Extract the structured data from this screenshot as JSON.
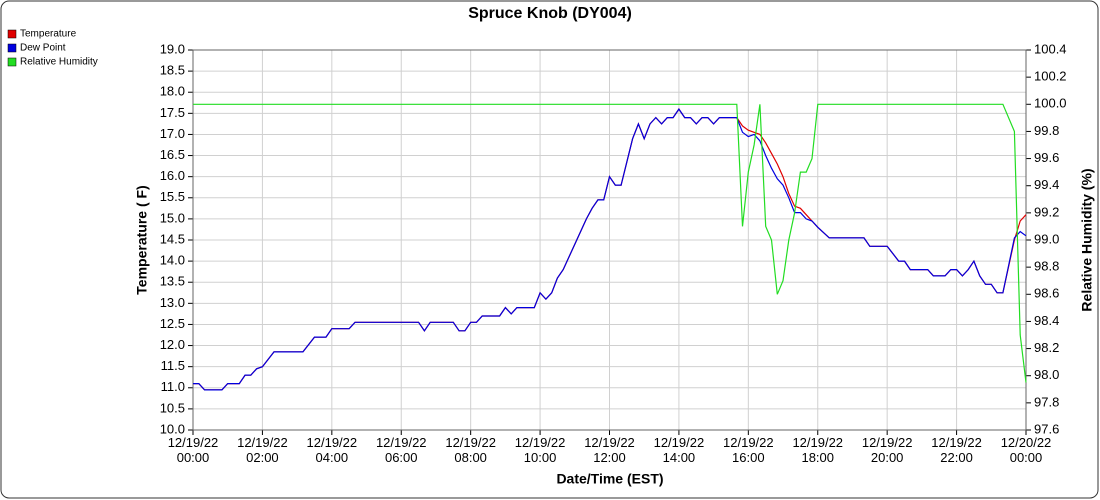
{
  "chart_data": {
    "type": "line",
    "title": "Spruce Knob (DY004)",
    "x_label": "Date/Time (EST)",
    "y_label": "Temperature ( F)",
    "y2_label": "Relative Humidity (%)",
    "legend": "top-left",
    "grid": true,
    "x": [
      "12/19/22 00:00",
      "12/19/22 00:10",
      "12/19/22 00:20",
      "12/19/22 00:50",
      "12/19/22 01:00",
      "12/19/22 01:20",
      "12/19/22 01:30",
      "12/19/22 01:40",
      "12/19/22 01:50",
      "12/19/22 02:00",
      "12/19/22 02:20",
      "12/19/22 03:10",
      "12/19/22 03:30",
      "12/19/22 03:50",
      "12/19/22 04:00",
      "12/19/22 04:30",
      "12/19/22 04:40",
      "12/19/22 06:30",
      "12/19/22 06:40",
      "12/19/22 06:50",
      "12/19/22 07:30",
      "12/19/22 07:40",
      "12/19/22 07:50",
      "12/19/22 08:00",
      "12/19/22 08:10",
      "12/19/22 08:20",
      "12/19/22 08:50",
      "12/19/22 09:00",
      "12/19/22 09:10",
      "12/19/22 09:20",
      "12/19/22 09:50",
      "12/19/22 10:00",
      "12/19/22 10:10",
      "12/19/22 10:20",
      "12/19/22 10:30",
      "12/19/22 10:40",
      "12/19/22 11:00",
      "12/19/22 11:20",
      "12/19/22 11:30",
      "12/19/22 11:40",
      "12/19/22 11:50",
      "12/19/22 12:00",
      "12/19/22 12:10",
      "12/19/22 12:20",
      "12/19/22 12:40",
      "12/19/22 12:50",
      "12/19/22 13:00",
      "12/19/22 13:10",
      "12/19/22 13:20",
      "12/19/22 13:30",
      "12/19/22 13:40",
      "12/19/22 13:50",
      "12/19/22 14:00",
      "12/19/22 14:10",
      "12/19/22 14:20",
      "12/19/22 14:30",
      "12/19/22 14:40",
      "12/19/22 14:50",
      "12/19/22 15:00",
      "12/19/22 15:10",
      "12/19/22 15:40",
      "12/19/22 15:50",
      "12/19/22 16:00",
      "12/19/22 16:10",
      "12/19/22 16:20",
      "12/19/22 16:30",
      "12/19/22 16:40",
      "12/19/22 16:50",
      "12/19/22 17:00",
      "12/19/22 17:10",
      "12/19/22 17:20",
      "12/19/22 17:30",
      "12/19/22 17:40",
      "12/19/22 17:50",
      "12/19/22 18:00",
      "12/19/22 18:20",
      "12/19/22 19:20",
      "12/19/22 19:30",
      "12/19/22 20:00",
      "12/19/22 20:20",
      "12/19/22 20:30",
      "12/19/22 20:40",
      "12/19/22 21:10",
      "12/19/22 21:20",
      "12/19/22 21:40",
      "12/19/22 21:50",
      "12/19/22 22:00",
      "12/19/22 22:10",
      "12/19/22 22:20",
      "12/19/22 22:30",
      "12/19/22 22:40",
      "12/19/22 22:50",
      "12/19/22 23:00",
      "12/19/22 23:10",
      "12/19/22 23:20",
      "12/19/22 23:40",
      "12/19/22 23:50",
      "12/20/22 00:00"
    ],
    "series": [
      {
        "name": "Temperature",
        "color": "#e00000",
        "values": [
          11.1,
          11.1,
          10.95,
          10.95,
          11.1,
          11.1,
          11.3,
          11.3,
          11.45,
          11.5,
          11.85,
          11.85,
          12.2,
          12.2,
          12.4,
          12.4,
          12.55,
          12.55,
          12.35,
          12.55,
          12.55,
          12.35,
          12.35,
          12.55,
          12.55,
          12.7,
          12.7,
          12.9,
          12.75,
          12.9,
          12.9,
          13.25,
          13.1,
          13.25,
          13.6,
          13.8,
          14.4,
          15.0,
          15.25,
          15.45,
          15.45,
          16.0,
          15.8,
          15.8,
          16.9,
          17.25,
          16.9,
          17.25,
          17.4,
          17.25,
          17.4,
          17.4,
          17.6,
          17.4,
          17.4,
          17.25,
          17.4,
          17.4,
          17.25,
          17.4,
          17.4,
          17.2,
          17.1,
          17.05,
          17.0,
          16.8,
          16.55,
          16.3,
          16.0,
          15.6,
          15.3,
          15.25,
          15.1,
          14.95,
          14.8,
          14.55,
          14.55,
          14.35,
          14.35,
          14.0,
          14.0,
          13.8,
          13.8,
          13.65,
          13.65,
          13.8,
          13.8,
          13.65,
          13.8,
          14.0,
          13.65,
          13.45,
          13.45,
          13.25,
          13.25,
          14.5,
          14.95,
          15.1
        ]
      },
      {
        "name": "Dew Point",
        "color": "#0000e0",
        "values": [
          11.1,
          11.1,
          10.95,
          10.95,
          11.1,
          11.1,
          11.3,
          11.3,
          11.45,
          11.5,
          11.85,
          11.85,
          12.2,
          12.2,
          12.4,
          12.4,
          12.55,
          12.55,
          12.35,
          12.55,
          12.55,
          12.35,
          12.35,
          12.55,
          12.55,
          12.7,
          12.7,
          12.9,
          12.75,
          12.9,
          12.9,
          13.25,
          13.1,
          13.25,
          13.6,
          13.8,
          14.4,
          15.0,
          15.25,
          15.45,
          15.45,
          16.0,
          15.8,
          15.8,
          16.9,
          17.25,
          16.9,
          17.25,
          17.4,
          17.25,
          17.4,
          17.4,
          17.6,
          17.4,
          17.4,
          17.25,
          17.4,
          17.4,
          17.25,
          17.4,
          17.4,
          17.05,
          16.95,
          17.0,
          16.85,
          16.5,
          16.2,
          15.95,
          15.8,
          15.5,
          15.15,
          15.15,
          15.0,
          14.95,
          14.8,
          14.55,
          14.55,
          14.35,
          14.35,
          14.0,
          14.0,
          13.8,
          13.8,
          13.65,
          13.65,
          13.8,
          13.8,
          13.65,
          13.8,
          14.0,
          13.65,
          13.45,
          13.45,
          13.25,
          13.25,
          14.55,
          14.7,
          14.6
        ]
      },
      {
        "name": "Relative Humidity",
        "color": "#22dd22",
        "axis": "y2",
        "values": [
          100,
          100,
          100,
          100,
          100,
          100,
          100,
          100,
          100,
          100,
          100,
          100,
          100,
          100,
          100,
          100,
          100,
          100,
          100,
          100,
          100,
          100,
          100,
          100,
          100,
          100,
          100,
          100,
          100,
          100,
          100,
          100,
          100,
          100,
          100,
          100,
          100,
          100,
          100,
          100,
          100,
          100,
          100,
          100,
          100,
          100,
          100,
          100,
          100,
          100,
          100,
          100,
          100,
          100,
          100,
          100,
          100,
          100,
          100,
          100,
          100,
          99.1,
          99.5,
          99.7,
          100,
          99.1,
          99.0,
          98.6,
          98.7,
          99.0,
          99.2,
          99.5,
          99.5,
          99.6,
          100,
          100,
          100,
          100,
          100,
          100,
          100,
          100,
          100,
          100,
          100,
          100,
          100,
          100,
          100,
          100,
          100,
          100,
          100,
          100,
          100,
          99.8,
          98.3,
          97.95
        ]
      }
    ],
    "xlim": [
      "12/19/22 00:00",
      "12/20/22 00:00"
    ],
    "xticks": [
      "12/19/22 00:00",
      "12/19/22 02:00",
      "12/19/22 04:00",
      "12/19/22 06:00",
      "12/19/22 08:00",
      "12/19/22 10:00",
      "12/19/22 12:00",
      "12/19/22 14:00",
      "12/19/22 16:00",
      "12/19/22 18:00",
      "12/19/22 20:00",
      "12/19/22 22:00",
      "12/20/22 00:00"
    ],
    "ylim": [
      10,
      19
    ],
    "yticks": [
      {
        "value": 10,
        "label": "10.0"
      },
      10.5,
      {
        "value": 11,
        "label": "11.0"
      },
      11.5,
      {
        "value": 12,
        "label": "12.0"
      },
      12.5,
      {
        "value": 13,
        "label": "13.0"
      },
      13.5,
      {
        "value": 14,
        "label": "14.0"
      },
      14.5,
      {
        "value": 15,
        "label": "15.0"
      },
      15.5,
      {
        "value": 16,
        "label": "16.0"
      },
      16.5,
      {
        "value": 17,
        "label": "17.0"
      },
      17.5,
      {
        "value": 18,
        "label": "18.0"
      },
      18.5,
      {
        "value": 19,
        "label": "19.0"
      }
    ],
    "y2lim": [
      97.6,
      100.4
    ],
    "y2ticks": [
      97.6,
      97.8,
      {
        "value": 98,
        "label": "98.0"
      },
      98.2,
      98.4,
      98.6,
      98.8,
      {
        "value": 99,
        "label": "99.0"
      },
      99.2,
      99.4,
      99.6,
      99.8,
      {
        "value": 100,
        "label": "100.0"
      },
      100.2,
      100.4
    ]
  }
}
